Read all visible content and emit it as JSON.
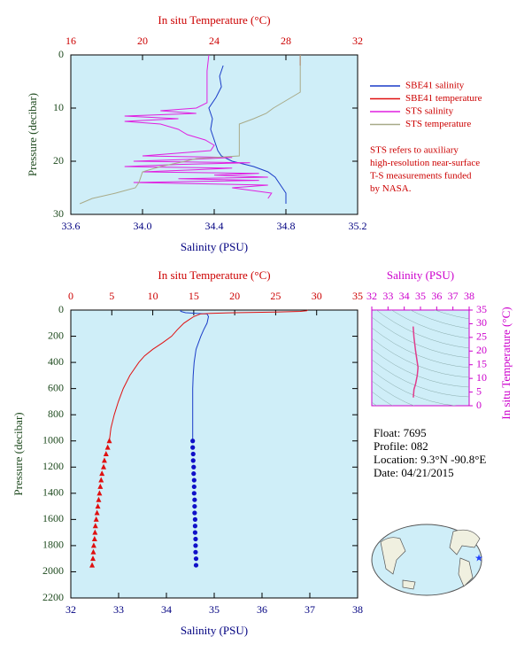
{
  "chart_data": [
    {
      "type": "profile",
      "title": "In situ Temperature (°C)",
      "xlabel": "Salinity (PSU)",
      "ylabel": "Pressure (decibar)",
      "xlim": [
        33.6,
        35.2
      ],
      "xticks": [
        33.6,
        {
          "value": 34,
          "label": "34.0"
        },
        34.4,
        34.8,
        35.2
      ],
      "x2lim": [
        16,
        32
      ],
      "x2ticks": [
        16,
        20,
        24,
        28,
        32
      ],
      "ylim": [
        30,
        0
      ],
      "yticks": [
        0,
        10,
        20,
        30
      ],
      "legend": "right",
      "note": [
        "STS refers to auxiliary",
        "high-resolution near-surface",
        "T-S measurements funded",
        "by NASA."
      ],
      "series": [
        {
          "name": "SBE41 salinity",
          "color": "#1a3cc8",
          "pressure": [
            2,
            4,
            6,
            8,
            10,
            12,
            14,
            16,
            18,
            19,
            20,
            21,
            22,
            23,
            24,
            25,
            26,
            28
          ],
          "values": [
            34.45,
            34.43,
            34.44,
            34.41,
            34.37,
            34.39,
            34.38,
            34.4,
            34.42,
            34.44,
            34.5,
            34.62,
            34.7,
            34.74,
            34.76,
            34.78,
            34.8,
            34.8
          ]
        },
        {
          "name": "SBE41 temperature",
          "color": "#e01010",
          "axis": "x2",
          "pressure": [
            0,
            2
          ],
          "values": [
            28.8,
            28.8
          ]
        },
        {
          "name": "STS salinity",
          "color": "#e020e0",
          "pressure": [
            0,
            3,
            6,
            9,
            10,
            10.5,
            11,
            11.5,
            12,
            12.5,
            13,
            14,
            15,
            16,
            17,
            18,
            19,
            19.3,
            19.6,
            20,
            20.3,
            20.6,
            21,
            21.3,
            21.6,
            22,
            22.3,
            22.6,
            23,
            23.3,
            23.6,
            24,
            24.5,
            25,
            26,
            27
          ],
          "values": [
            34.37,
            34.36,
            34.36,
            34.36,
            34.3,
            34.1,
            34.3,
            33.9,
            34.2,
            33.9,
            34.1,
            34.2,
            34.25,
            34.35,
            34.4,
            34.38,
            34.0,
            34.5,
            34.3,
            33.95,
            34.6,
            34.2,
            33.9,
            34.5,
            34.3,
            34.0,
            34.65,
            34.4,
            34.7,
            34.2,
            34.65,
            33.95,
            34.7,
            34.5,
            34.72,
            34.7
          ]
        },
        {
          "name": "STS temperature",
          "color": "#a8aa88",
          "axis": "x2",
          "pressure": [
            0,
            4,
            7,
            8,
            9,
            10,
            11,
            12,
            13,
            14,
            17,
            19,
            19.5,
            20,
            21,
            22,
            24,
            25,
            26,
            27,
            28
          ],
          "values": [
            28.8,
            28.8,
            28.8,
            28.3,
            27.8,
            27.3,
            26.9,
            26.2,
            25.4,
            25.4,
            25.4,
            25.4,
            23.0,
            22.4,
            21.0,
            20.0,
            19.8,
            19.6,
            18.5,
            17.2,
            16.5
          ]
        }
      ]
    },
    {
      "type": "profile",
      "title": "In situ Temperature (°C)",
      "xlabel": "Salinity (PSU)",
      "ylabel": "Pressure (decibar)",
      "xlim": [
        32,
        38
      ],
      "xticks": [
        32,
        33,
        34,
        35,
        36,
        37,
        38
      ],
      "x2lim": [
        0,
        35
      ],
      "x2ticks": [
        0,
        5,
        10,
        15,
        20,
        25,
        30,
        35
      ],
      "ylim": [
        2200,
        0
      ],
      "yticks": [
        0,
        200,
        400,
        600,
        800,
        1000,
        1200,
        1400,
        1600,
        1800,
        2000,
        2200
      ],
      "series": [
        {
          "color": "#1a3cc8",
          "pressure": [
            0,
            10,
            20,
            30,
            50,
            100,
            150,
            200,
            300,
            400,
            500,
            600,
            800,
            1000
          ],
          "values": [
            34.3,
            34.3,
            34.4,
            34.85,
            34.88,
            34.85,
            34.78,
            34.72,
            34.62,
            34.58,
            34.56,
            34.55,
            34.55,
            34.55
          ]
        },
        {
          "color": "#e01010",
          "axis": "x2",
          "pressure": [
            0,
            5,
            10,
            15,
            20,
            25,
            30,
            50,
            75,
            100,
            150,
            200,
            250,
            300,
            350,
            400,
            500,
            600,
            700,
            800,
            900,
            1000
          ],
          "values": [
            28.9,
            28.8,
            28.0,
            25.0,
            20.0,
            17.0,
            15.8,
            15.0,
            14.4,
            13.8,
            13.0,
            12.3,
            11.2,
            10.0,
            9.0,
            8.3,
            7.2,
            6.4,
            5.8,
            5.3,
            4.9,
            4.7
          ]
        },
        {
          "color": "#1010c8",
          "marker": "circle",
          "pressure": [
            1000,
            1050,
            1100,
            1150,
            1200,
            1250,
            1300,
            1350,
            1400,
            1450,
            1500,
            1550,
            1600,
            1650,
            1700,
            1750,
            1800,
            1850,
            1900,
            1950
          ],
          "values": [
            34.55,
            34.55,
            34.56,
            34.56,
            34.57,
            34.57,
            34.58,
            34.58,
            34.58,
            34.59,
            34.59,
            34.59,
            34.6,
            34.6,
            34.6,
            34.61,
            34.61,
            34.61,
            34.62,
            34.62
          ]
        },
        {
          "color": "#e01010",
          "axis": "x2",
          "marker": "triangle",
          "pressure": [
            1000,
            1050,
            1100,
            1150,
            1200,
            1250,
            1300,
            1350,
            1400,
            1450,
            1500,
            1550,
            1600,
            1650,
            1700,
            1750,
            1800,
            1850,
            1900,
            1950
          ],
          "values": [
            4.7,
            4.5,
            4.3,
            4.1,
            4.0,
            3.8,
            3.7,
            3.6,
            3.5,
            3.4,
            3.3,
            3.2,
            3.1,
            3.0,
            2.95,
            2.9,
            2.8,
            2.75,
            2.7,
            2.6
          ]
        }
      ]
    },
    {
      "type": "line",
      "title": "Salinity (PSU)",
      "ylabel": "In situ Temperature (°C)",
      "xlim": [
        32,
        38
      ],
      "xticks": [
        32,
        33,
        34,
        35,
        36,
        37,
        38
      ],
      "ylim": [
        0,
        35
      ],
      "yticks": [
        0,
        5,
        10,
        15,
        20,
        25,
        30,
        35
      ],
      "series": [
        {
          "color": "#e03c8c",
          "x": [
            34.55,
            34.6,
            34.7,
            34.8,
            34.85,
            34.8,
            34.7,
            34.6,
            34.58,
            34.56
          ],
          "values": [
            29,
            25,
            20,
            16,
            14,
            11,
            8,
            6,
            4.5,
            3
          ]
        }
      ]
    }
  ],
  "info": {
    "float": "Float:  7695",
    "profile": "Profile:  082",
    "location": "Location:  9.3°N  -90.8°E",
    "date": "Date:  04/21/2015"
  }
}
